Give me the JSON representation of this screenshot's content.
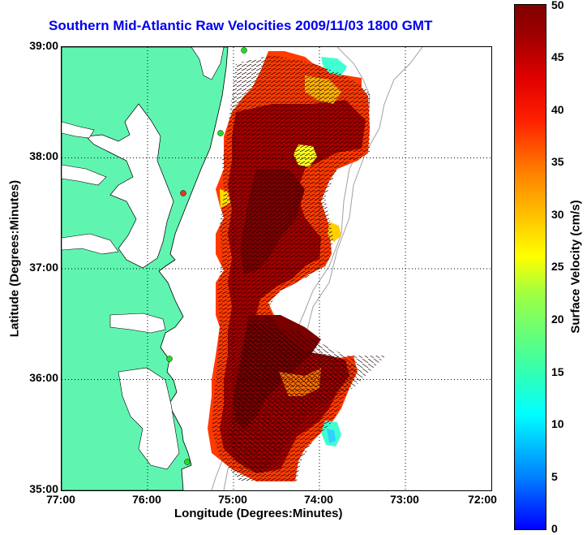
{
  "title": "Southern Mid-Atlantic Raw Velocities 2009/11/03 1800 GMT",
  "xlabel": "Longitude (Degrees:Minutes)",
  "ylabel": "Latitude (Degrees:Minutes)",
  "colorbar": {
    "label": "Surface Velocity (cm/s)",
    "ticks": [
      "0",
      "5",
      "10",
      "15",
      "20",
      "25",
      "30",
      "35",
      "40",
      "45",
      "50"
    ],
    "range": [
      0,
      50
    ],
    "colormap": "jet"
  },
  "axes": {
    "xticks": [
      "77:00",
      "76:00",
      "75:00",
      "74:00",
      "73:00",
      "72:00"
    ],
    "yticks": [
      "39:00",
      "38:00",
      "37:00",
      "36:00",
      "35:00"
    ],
    "xlim": [
      "77:00",
      "72:00"
    ],
    "ylim": [
      "35:00",
      "39:00"
    ],
    "grid": "dotted"
  },
  "colors": {
    "land": "#5ff5b0",
    "coast": "#000000",
    "bathymetry": "#a0a0a0",
    "station": "#22dd22",
    "station_alt": "#ee3322",
    "title": "#0000ee"
  }
}
